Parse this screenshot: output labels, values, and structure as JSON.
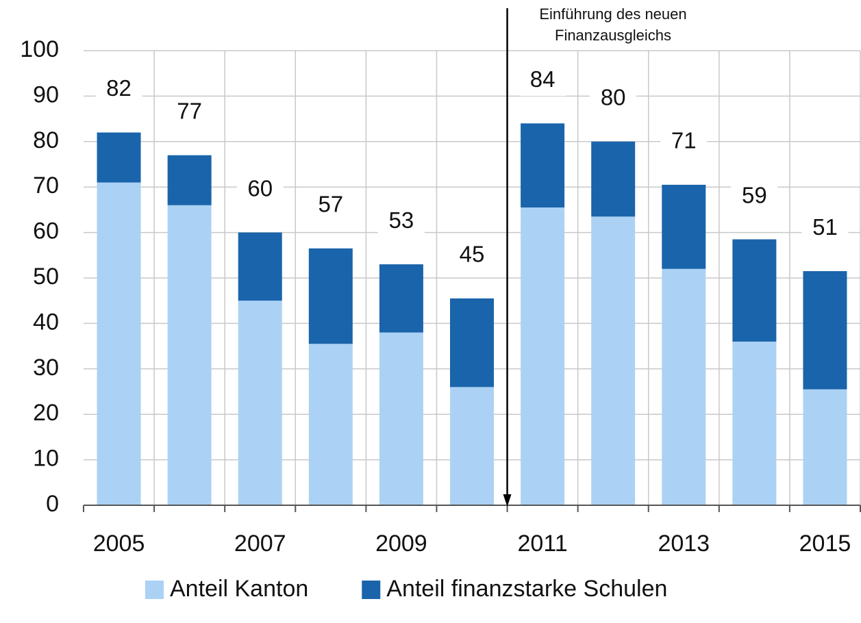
{
  "chart_data": {
    "type": "stacked_bar",
    "categories": [
      "2005",
      null,
      "2007",
      null,
      "2009",
      null,
      "2011",
      null,
      "2013",
      null,
      "2015"
    ],
    "series": [
      {
        "name": "Anteil Kanton",
        "color": "#abd2f4",
        "values": [
          71,
          66,
          45,
          35.5,
          38,
          26,
          65.5,
          63.5,
          52,
          36,
          25.5
        ]
      },
      {
        "name": "Anteil finanzstarke Schulen",
        "color": "#1a64ab",
        "values": [
          11,
          11,
          15,
          21,
          15,
          19.5,
          18.5,
          16.5,
          18.5,
          22.5,
          26
        ]
      }
    ],
    "totals": [
      82,
      77,
      60,
      57,
      53,
      45,
      84,
      80,
      71,
      59,
      51
    ],
    "annotation": [
      "Einführung des neuen",
      "Finanzausgleichs"
    ],
    "ylim": [
      0,
      100
    ],
    "yticks": [
      0,
      10,
      20,
      30,
      40,
      50,
      60,
      70,
      80,
      90,
      100
    ],
    "grid": true,
    "legend": "bottom"
  }
}
